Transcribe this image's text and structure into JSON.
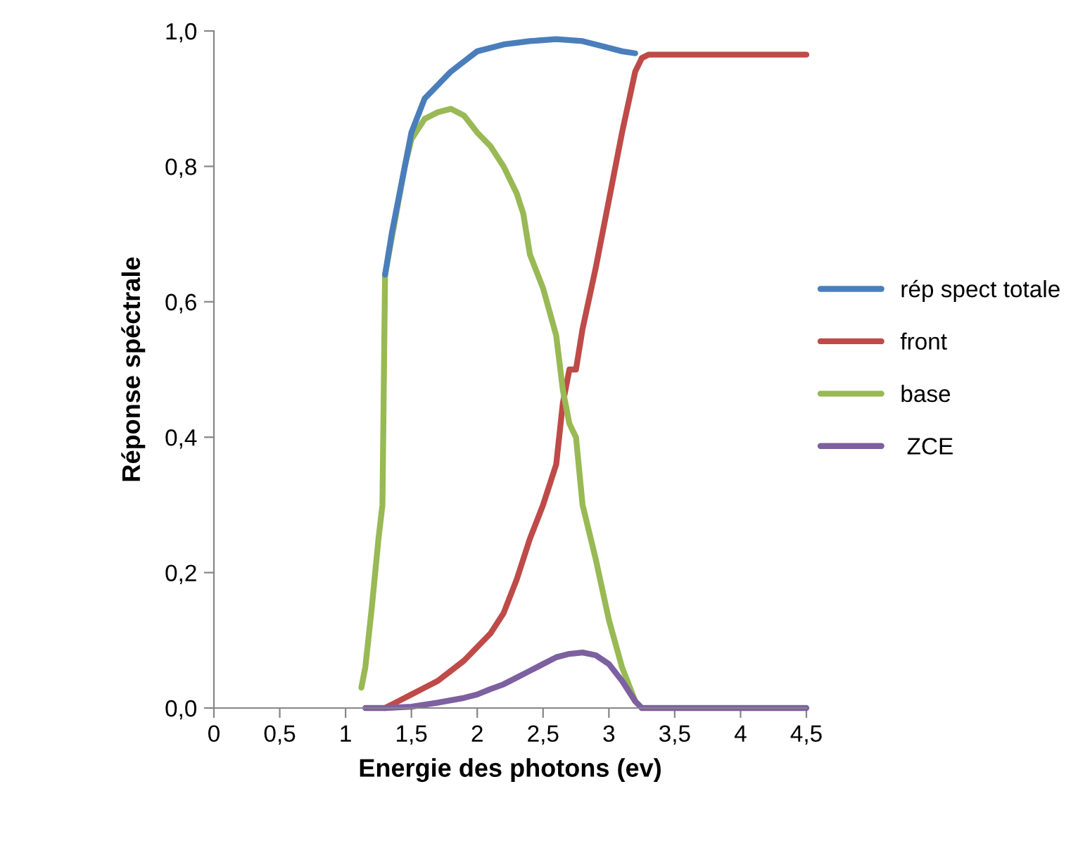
{
  "chart_data": {
    "type": "line",
    "xlabel": "Energie des photons (ev)",
    "ylabel": "Réponse spéctrale",
    "xlim": [
      0,
      4.5
    ],
    "ylim": [
      0,
      1
    ],
    "xticks": [
      0,
      {
        "value": 0.5,
        "label": "0,5"
      },
      1,
      {
        "value": 1.5,
        "label": "1,5"
      },
      2,
      {
        "value": 2.5,
        "label": "2,5"
      },
      3,
      {
        "value": 3.5,
        "label": "3,5"
      },
      4,
      {
        "value": 4.5,
        "label": "4,5"
      }
    ],
    "yticks": [
      {
        "value": 0,
        "label": "0,0"
      },
      {
        "value": 0.2,
        "label": "0,2"
      },
      {
        "value": 0.4,
        "label": "0,4"
      },
      {
        "value": 0.6,
        "label": "0,6"
      },
      {
        "value": 0.8,
        "label": "0,8"
      },
      {
        "value": 1,
        "label": "1,0"
      }
    ],
    "grid": false,
    "legend": "right",
    "marker": "none",
    "line_style": "solid",
    "series": [
      {
        "name": "rép spect totale",
        "color": "#4a7ebb",
        "x": [
          1.3,
          1.35,
          1.4,
          1.45,
          1.5,
          1.6,
          1.7,
          1.8,
          1.9,
          2.0,
          2.2,
          2.4,
          2.6,
          2.8,
          3.0,
          3.1,
          3.2
        ],
        "values": [
          0.64,
          0.7,
          0.75,
          0.8,
          0.85,
          0.9,
          0.92,
          0.94,
          0.955,
          0.97,
          0.98,
          0.985,
          0.988,
          0.985,
          0.975,
          0.97,
          0.967
        ]
      },
      {
        "name": "front",
        "color": "#be4b48",
        "x": [
          1.3,
          1.4,
          1.5,
          1.6,
          1.7,
          1.8,
          1.9,
          2.0,
          2.1,
          2.2,
          2.3,
          2.4,
          2.5,
          2.6,
          2.65,
          2.7,
          2.75,
          2.8,
          2.9,
          3.0,
          3.1,
          3.2,
          3.25,
          3.3,
          3.5,
          4.0,
          4.5
        ],
        "values": [
          0.0,
          0.01,
          0.02,
          0.03,
          0.04,
          0.055,
          0.07,
          0.09,
          0.11,
          0.14,
          0.19,
          0.25,
          0.3,
          0.36,
          0.45,
          0.5,
          0.5,
          0.56,
          0.65,
          0.75,
          0.85,
          0.94,
          0.96,
          0.965,
          0.965,
          0.965,
          0.965
        ]
      },
      {
        "name": "base",
        "color": "#98b954",
        "x": [
          1.12,
          1.15,
          1.2,
          1.25,
          1.28,
          1.3,
          1.45,
          1.5,
          1.6,
          1.7,
          1.8,
          1.9,
          2.0,
          2.1,
          2.2,
          2.3,
          2.35,
          2.4,
          2.5,
          2.6,
          2.65,
          2.7,
          2.75,
          2.8,
          2.9,
          3.0,
          3.1,
          3.2
        ],
        "values": [
          0.03,
          0.06,
          0.15,
          0.25,
          0.3,
          0.64,
          0.8,
          0.84,
          0.87,
          0.88,
          0.885,
          0.875,
          0.85,
          0.83,
          0.8,
          0.76,
          0.73,
          0.67,
          0.62,
          0.55,
          0.47,
          0.42,
          0.4,
          0.3,
          0.22,
          0.13,
          0.06,
          0.01
        ]
      },
      {
        "name": " ZCE",
        "color": "#7d60a0",
        "x": [
          1.15,
          1.3,
          1.5,
          1.7,
          1.9,
          2.0,
          2.1,
          2.2,
          2.3,
          2.4,
          2.5,
          2.6,
          2.7,
          2.8,
          2.9,
          3.0,
          3.1,
          3.2,
          3.25,
          3.5,
          4.0,
          4.5
        ],
        "values": [
          0.0,
          0.0,
          0.002,
          0.008,
          0.015,
          0.02,
          0.028,
          0.035,
          0.045,
          0.055,
          0.065,
          0.075,
          0.08,
          0.082,
          0.078,
          0.065,
          0.04,
          0.01,
          0.0,
          0.0,
          0.0,
          0.0
        ]
      }
    ]
  }
}
